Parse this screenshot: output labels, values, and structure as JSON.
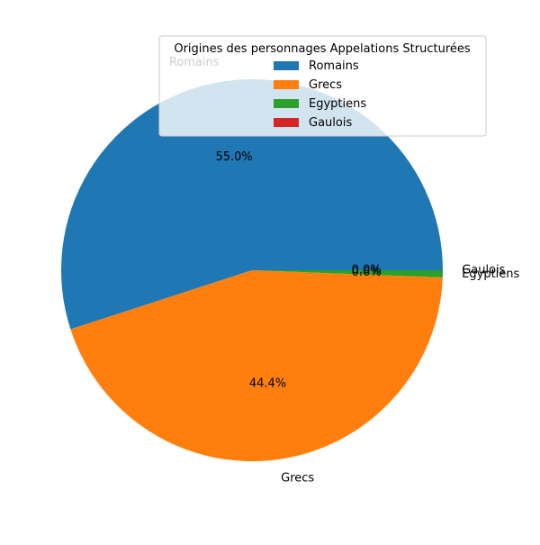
{
  "chart_data": {
    "type": "pie",
    "title": "",
    "categories": [
      "Romains",
      "Grecs",
      "Egyptiens",
      "Gaulois"
    ],
    "values": [
      55.0,
      44.4,
      0.6,
      0.0
    ],
    "pct_labels": [
      "55.0%",
      "44.4%",
      "0.6%",
      "0.0%"
    ],
    "colors": [
      "#1f77b4",
      "#ff7f0e",
      "#2ca02c",
      "#d62728"
    ],
    "start_angle_deg": 0,
    "direction": "counterclockwise",
    "legend": {
      "title": "Origines des personnages Appelations Structurées",
      "placement": "top-right",
      "entries": [
        "Romains",
        "Grecs",
        "Egyptiens",
        "Gaulois"
      ]
    }
  }
}
